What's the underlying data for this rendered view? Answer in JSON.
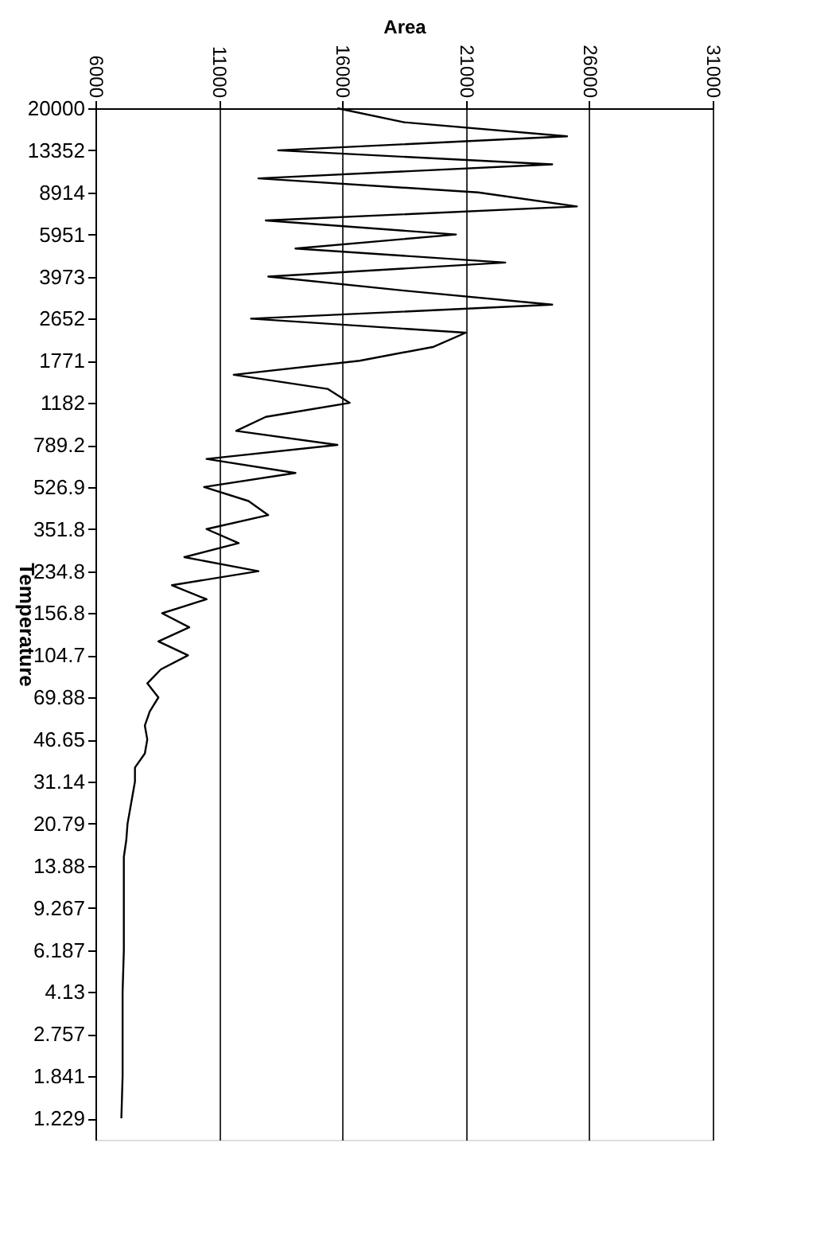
{
  "chart_data": {
    "type": "line",
    "xlabel": "Area",
    "ylabel": "Temperature",
    "log": "y",
    "grid": "x",
    "xlim": [
      6000,
      31000
    ],
    "xticks": [
      6000,
      11000,
      16000,
      21000,
      26000,
      31000
    ],
    "ylim": [
      1,
      20000
    ],
    "yticks": [
      20000,
      13352,
      8914,
      5951,
      3973,
      2652,
      1771,
      1182,
      789.2,
      526.9,
      351.8,
      234.8,
      156.8,
      104.7,
      69.88,
      46.65,
      31.14,
      20.79,
      13.88,
      9.267,
      6.187,
      4.13,
      2.757,
      1.841,
      1.229
    ],
    "series": [
      {
        "color": "#000000",
        "x": [
          15800,
          18500,
          25100,
          13400,
          24500,
          12600,
          21500,
          25500,
          12900,
          20600,
          14100,
          22600,
          13000,
          18500,
          24500,
          12300,
          21000,
          19700,
          16700,
          11600,
          15400,
          16300,
          12900,
          11700,
          15800,
          10500,
          14100,
          10400,
          12200,
          13000,
          10500,
          11800,
          9600,
          12600,
          9100,
          10500,
          8700,
          9800,
          8550,
          9750,
          8650,
          8100,
          8550,
          8200,
          8000,
          8100,
          8000,
          7600,
          7600,
          7300,
          7250,
          7150,
          7150,
          7150,
          7150,
          7100,
          7100,
          7100,
          7050
        ],
        "values": [
          20000,
          17478,
          15273,
          13352,
          11668,
          10197,
          8914,
          7790,
          6807,
          5951,
          5201,
          4545,
          3973,
          3472,
          3034,
          2652,
          2318,
          2025,
          1771,
          1548,
          1352,
          1182,
          1033,
          902.7,
          789.2,
          689.7,
          602.7,
          526.9,
          460.5,
          402.4,
          351.8,
          307.4,
          268.7,
          234.8,
          205.2,
          179.3,
          156.8,
          137.0,
          119.7,
          104.7,
          91.5,
          80.0,
          69.88,
          61.07,
          53.37,
          46.65,
          40.77,
          35.63,
          31.14,
          20.79,
          17.8,
          15.1,
          13.88,
          9.267,
          6.187,
          4.13,
          2.757,
          1.841,
          1.229
        ]
      }
    ]
  }
}
